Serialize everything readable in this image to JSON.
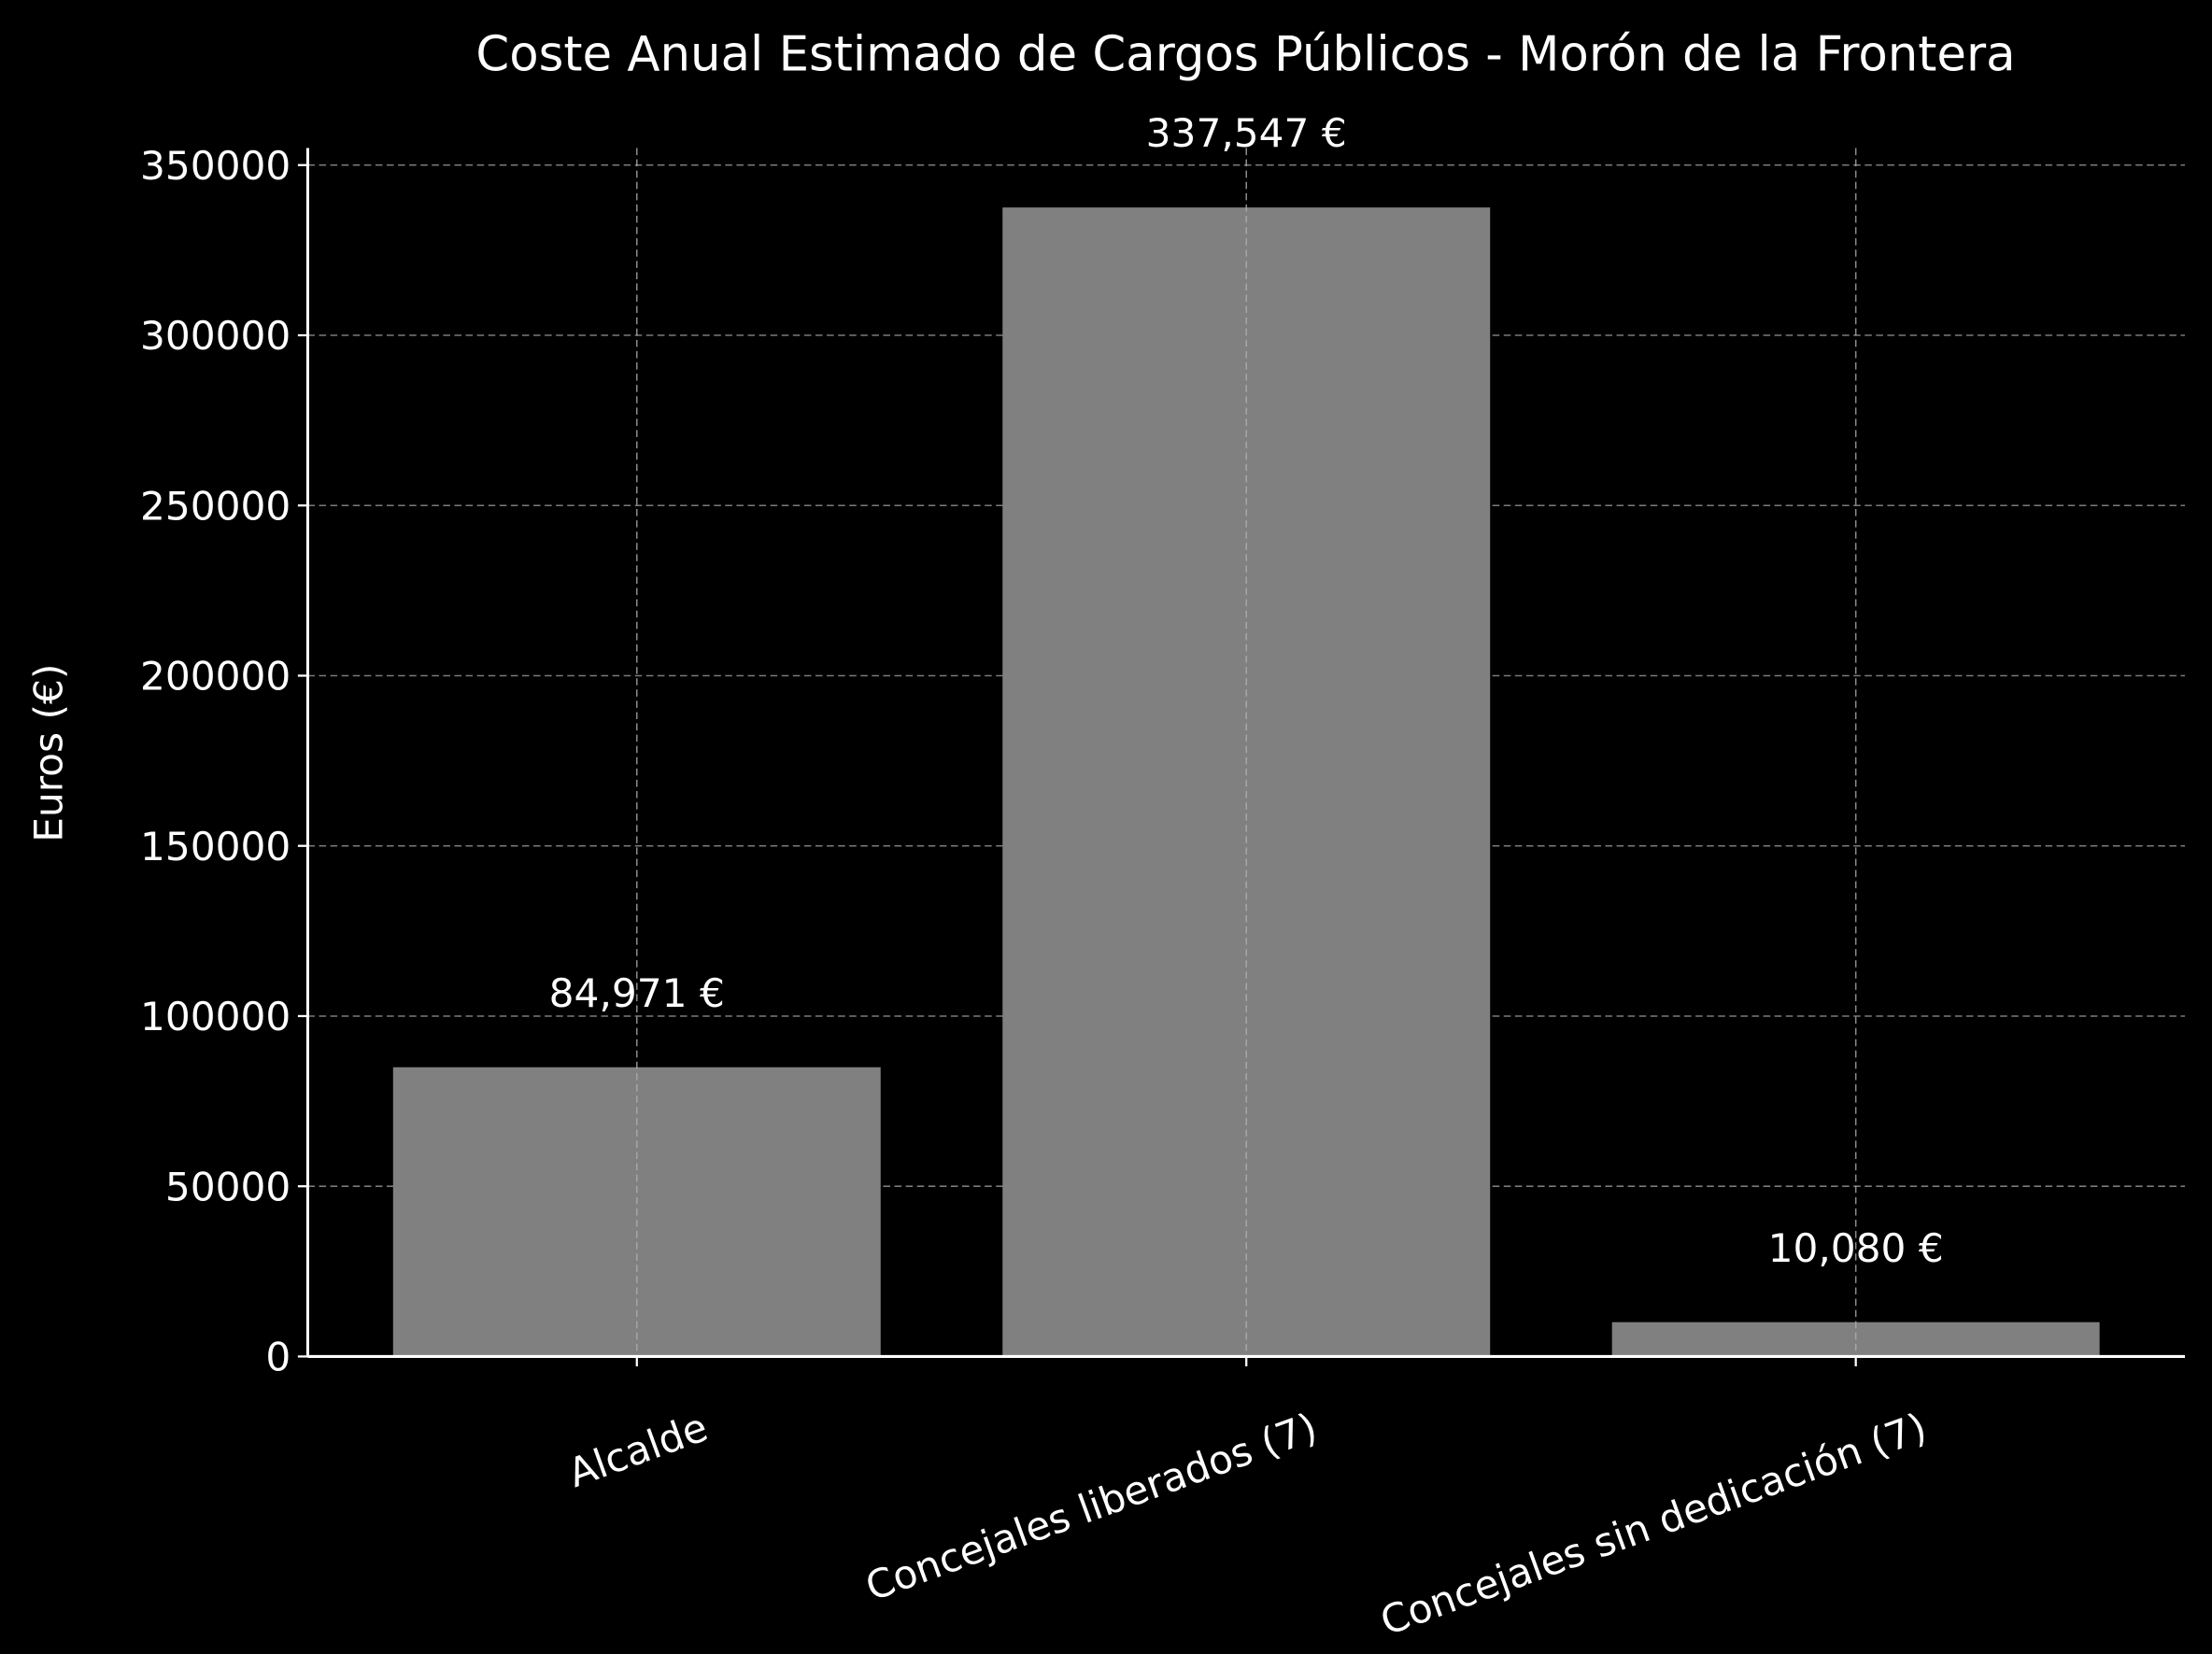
{
  "chart_data": {
    "type": "bar",
    "title": "Coste Anual Estimado de Cargos Públicos - Morón de la Frontera",
    "xlabel": "",
    "ylabel": "Euros (€)",
    "categories": [
      "Alcalde",
      "Concejales liberados (7)",
      "Concejales sin dedicación (7)"
    ],
    "values": [
      84971,
      337547,
      10080
    ],
    "data_labels": [
      "84,971 €",
      "337,547 €",
      "10,080 €"
    ],
    "ylim": [
      0,
      355000
    ],
    "yticks": [
      0,
      50000,
      100000,
      150000,
      200000,
      250000,
      300000,
      350000
    ],
    "ytick_labels": [
      "0",
      "50000",
      "100000",
      "150000",
      "200000",
      "250000",
      "300000",
      "350000"
    ],
    "grid": true,
    "colors": {
      "bar": "#808080",
      "background": "#000000",
      "text": "#ffffff",
      "grid": "#b0b0b0"
    }
  }
}
